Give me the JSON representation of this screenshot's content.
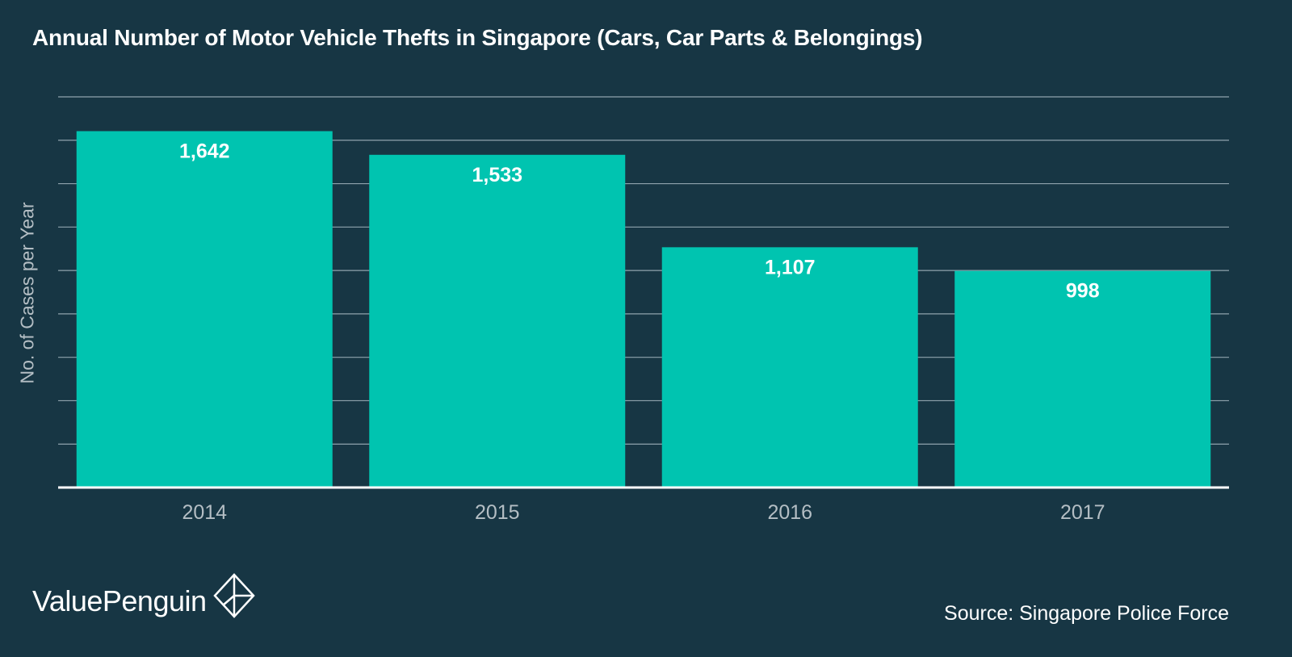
{
  "chart_data": {
    "type": "bar",
    "title": "Annual Number of Motor Vehicle Thefts in Singapore (Cars, Car Parts & Belongings)",
    "xlabel": "",
    "ylabel": "No. of Cases per Year",
    "categories": [
      "2014",
      "2015",
      "2016",
      "2017"
    ],
    "values": [
      1642,
      1533,
      1107,
      998
    ],
    "value_labels": [
      "1,642",
      "1,533",
      "1,107",
      "998"
    ],
    "ylim": [
      0,
      1800
    ],
    "ytick_step": 200,
    "grid": true,
    "y_tick_labels_shown": false,
    "bar_color": "#00c4b0",
    "background_color": "#173644",
    "gridline_color": "#8fa3ad",
    "baseline_color": "#ffffff",
    "axis_text_color": "#b4bec4"
  },
  "footer": {
    "brand": "ValuePenguin",
    "brand_icon": "valuepenguin-logo-icon",
    "source": "Source: Singapore Police Force"
  }
}
